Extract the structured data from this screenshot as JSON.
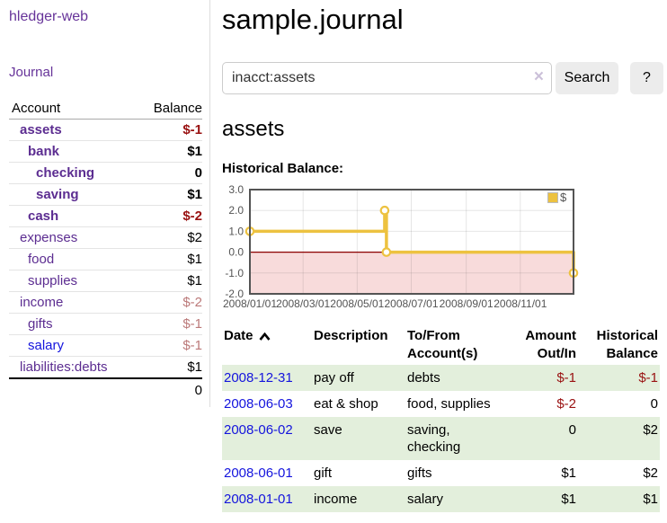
{
  "sidebar": {
    "brand": "hledger-web",
    "journal_link": "Journal",
    "accounts": {
      "headers": {
        "account": "Account",
        "balance": "Balance"
      },
      "rows": [
        {
          "name": "assets",
          "balance": "$-1",
          "indent": 1,
          "bold": true,
          "neg": "strong"
        },
        {
          "name": "bank",
          "balance": "$1",
          "indent": 2,
          "bold": true
        },
        {
          "name": "checking",
          "balance": "0",
          "indent": 3,
          "bold": true
        },
        {
          "name": "saving",
          "balance": "$1",
          "indent": 3,
          "bold": true
        },
        {
          "name": "cash",
          "balance": "$-2",
          "indent": 2,
          "bold": true,
          "neg": "strong"
        },
        {
          "name": "expenses",
          "balance": "$2",
          "indent": 1
        },
        {
          "name": "food",
          "balance": "$1",
          "indent": 2
        },
        {
          "name": "supplies",
          "balance": "$1",
          "indent": 2
        },
        {
          "name": "income",
          "balance": "$-2",
          "indent": 1,
          "neg": "muted"
        },
        {
          "name": "gifts",
          "balance": "$-1",
          "indent": 2,
          "neg": "muted"
        },
        {
          "name": "salary",
          "balance": "$-1",
          "indent": 2,
          "neg": "muted",
          "blue": true
        },
        {
          "name": "liabilities:debts",
          "balance": "$1",
          "indent": 1
        }
      ],
      "total": "0"
    }
  },
  "main": {
    "title": "sample.journal",
    "search": {
      "value": "inacct:assets",
      "clear_icon": "×",
      "search_button": "Search",
      "help_button": "?"
    },
    "heading": "assets",
    "chart_label": "Historical Balance:",
    "register": {
      "sort": {
        "column": "date",
        "direction": "ascending"
      },
      "headers": {
        "date": "Date",
        "description": "Description",
        "accounts": "To/From Account(s)",
        "amount": "Amount Out/In",
        "balance": "Historical Balance"
      },
      "rows": [
        {
          "date": "2008-12-31",
          "description": "pay off",
          "accounts": "debts",
          "amount": "$-1",
          "amount_neg": true,
          "balance": "$-1",
          "balance_neg": true
        },
        {
          "date": "2008-06-03",
          "description": "eat & shop",
          "accounts": "food, supplies",
          "amount": "$-2",
          "amount_neg": true,
          "balance": "0",
          "balance_neg": false
        },
        {
          "date": "2008-06-02",
          "description": "save",
          "accounts": "saving, checking",
          "amount": "0",
          "amount_neg": false,
          "balance": "$2",
          "balance_neg": false
        },
        {
          "date": "2008-06-01",
          "description": "gift",
          "accounts": "gifts",
          "amount": "$1",
          "amount_neg": false,
          "balance": "$2",
          "balance_neg": false
        },
        {
          "date": "2008-01-01",
          "description": "income",
          "accounts": "salary",
          "amount": "$1",
          "amount_neg": false,
          "balance": "$1",
          "balance_neg": false
        }
      ]
    }
  },
  "chart_data": {
    "type": "line",
    "title": "Historical Balance:",
    "x_type": "date",
    "xrange": [
      "2008-01-01",
      "2008-12-31"
    ],
    "ylim": [
      -2,
      3
    ],
    "yticks": [
      3,
      2,
      1,
      0,
      -1,
      -2
    ],
    "xticks": [
      "2008/01/01",
      "2008/03/01",
      "2008/05/01",
      "2008/07/01",
      "2008/09/01",
      "2008/11/01"
    ],
    "grid": true,
    "legend": {
      "position": "top-right",
      "label": "$"
    },
    "series": [
      {
        "name": "$",
        "type": "step-line",
        "color": "#edc240",
        "marker": "circle",
        "points": [
          [
            "2008-01-01",
            1
          ],
          [
            "2008-06-01",
            2
          ],
          [
            "2008-06-03",
            0
          ],
          [
            "2008-12-31",
            -1
          ]
        ]
      }
    ],
    "zero_line_color": "#8b0000",
    "negative_region_fill": "#f8dbdb",
    "plot_border_color": "#545454",
    "gridline_color": "rgba(84,84,84,0.15)",
    "tick_label_color": "#545454"
  }
}
